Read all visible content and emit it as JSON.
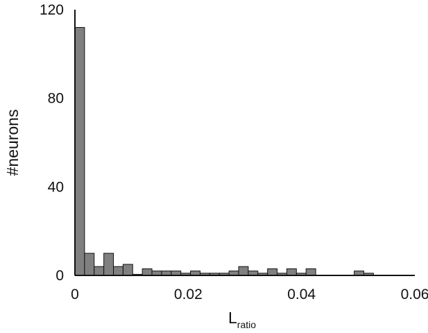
{
  "chart_data": {
    "type": "bar",
    "title": "",
    "xlabel": {
      "main": "L",
      "subscript": "ratio"
    },
    "ylabel": "#neurons",
    "xlim": [
      0,
      0.06
    ],
    "ylim": [
      0,
      120
    ],
    "xticks": [
      {
        "value": 0,
        "label": "0"
      },
      {
        "value": 0.02,
        "label": "0.02"
      },
      {
        "value": 0.04,
        "label": "0.04"
      },
      {
        "value": 0.06,
        "label": "0.06"
      }
    ],
    "yticks": [
      {
        "value": 0,
        "label": "0"
      },
      {
        "value": 40,
        "label": "40"
      },
      {
        "value": 80,
        "label": "80"
      },
      {
        "value": 120,
        "label": "120"
      }
    ],
    "bin_width": 0.0017,
    "bin_start": 0,
    "values": [
      112,
      10,
      4,
      10,
      4,
      5,
      0.5,
      3,
      2,
      2,
      2,
      1,
      2,
      1,
      1,
      1,
      2,
      4,
      2,
      1,
      3,
      1,
      3,
      1,
      3,
      0,
      0,
      0,
      0,
      2,
      1,
      0,
      0,
      0,
      0,
      0
    ],
    "bar_color": "#808080",
    "grid": false,
    "legend": "none"
  }
}
